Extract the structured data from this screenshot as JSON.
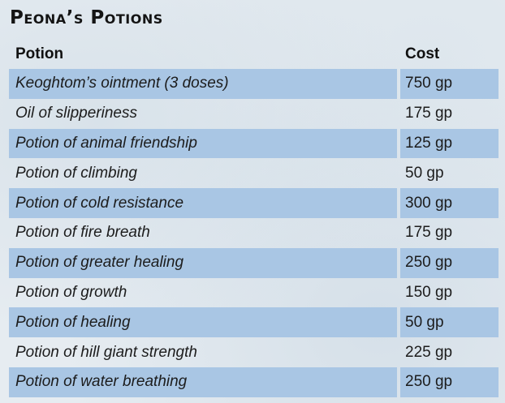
{
  "title": "Peona’s Potions",
  "table": {
    "headers": {
      "potion": "Potion",
      "cost": "Cost"
    },
    "rows": [
      {
        "potion": "Keoghtom’s ointment (3 doses)",
        "cost": "750 gp"
      },
      {
        "potion": "Oil of slipperiness",
        "cost": "175 gp"
      },
      {
        "potion": "Potion of animal friendship",
        "cost": "125 gp"
      },
      {
        "potion": "Potion of climbing",
        "cost": "50 gp"
      },
      {
        "potion": "Potion of cold resistance",
        "cost": "300 gp"
      },
      {
        "potion": "Potion of fire breath",
        "cost": "175 gp"
      },
      {
        "potion": "Potion of greater healing",
        "cost": "250 gp"
      },
      {
        "potion": "Potion of growth",
        "cost": "150 gp"
      },
      {
        "potion": "Potion of healing",
        "cost": "50 gp"
      },
      {
        "potion": "Potion of hill giant strength",
        "cost": "225 gp"
      },
      {
        "potion": "Potion of water breathing",
        "cost": "250 gp"
      }
    ]
  },
  "colors": {
    "row_shade": "#a9c6e4",
    "background": "#e6ecf1",
    "text": "#1c1c1c"
  }
}
